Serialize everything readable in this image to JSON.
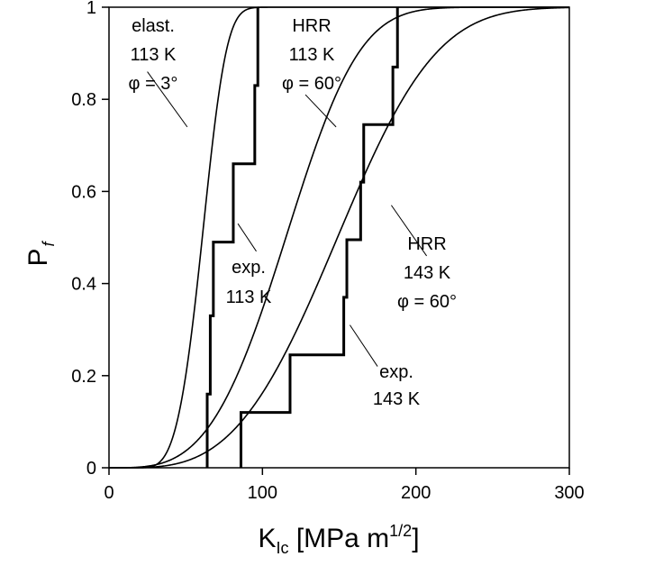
{
  "chart_data": {
    "type": "line",
    "title": "",
    "xlabel": {
      "main": "K",
      "sub": "Ic",
      "rest": " [MPa m",
      "sup": "1/2",
      "close": "]"
    },
    "ylabel": {
      "main": "P",
      "sub": "f"
    },
    "xlim": [
      0,
      300
    ],
    "ylim": [
      0,
      1
    ],
    "xticks": [
      0,
      100,
      200,
      300
    ],
    "xtick_labels": [
      "0",
      "100",
      "200",
      "300"
    ],
    "yticks": [
      0,
      0.2,
      0.4,
      0.6,
      0.8,
      1
    ],
    "ytick_labels": [
      "0",
      "0.2",
      "0.4",
      "0.6",
      "0.8",
      "1"
    ],
    "grid": false,
    "series": [
      {
        "name": "elast. 113 K φ = 3°",
        "kind": "smooth",
        "weibull": {
          "k0": 17,
          "scale": 48,
          "m": 4
        }
      },
      {
        "name": "HRR 113 K φ = 60°",
        "kind": "smooth",
        "weibull": {
          "k0": 0,
          "scale": 128,
          "m": 3.5
        }
      },
      {
        "name": "HRR 143 K φ = 60°",
        "kind": "smooth",
        "weibull": {
          "k0": 8,
          "scale": 158,
          "m": 3.2
        }
      },
      {
        "name": "exp. 113 K",
        "kind": "step",
        "points": [
          [
            64,
            0
          ],
          [
            64,
            0.16
          ],
          [
            66,
            0.16
          ],
          [
            66,
            0.33
          ],
          [
            68,
            0.33
          ],
          [
            68,
            0.49
          ],
          [
            81,
            0.49
          ],
          [
            81,
            0.66
          ],
          [
            95,
            0.66
          ],
          [
            95,
            0.83
          ],
          [
            97,
            0.83
          ],
          [
            97,
            1.0
          ]
        ]
      },
      {
        "name": "exp. 143 K",
        "kind": "step",
        "points": [
          [
            86,
            0
          ],
          [
            86,
            0.12
          ],
          [
            118,
            0.12
          ],
          [
            118,
            0.245
          ],
          [
            153,
            0.245
          ],
          [
            153,
            0.37
          ],
          [
            155,
            0.37
          ],
          [
            155,
            0.495
          ],
          [
            164,
            0.495
          ],
          [
            164,
            0.62
          ],
          [
            166,
            0.62
          ],
          [
            166,
            0.745
          ],
          [
            185,
            0.745
          ],
          [
            185,
            0.87
          ],
          [
            188,
            0.87
          ],
          [
            188,
            1.0
          ]
        ]
      }
    ],
    "annotations": [
      {
        "name": "elast-label",
        "lines": [
          "elast.",
          "113 K",
          "φ = 3°"
        ],
        "leader_from": [
          25,
          0.86
        ],
        "leader_to": [
          51,
          0.74
        ]
      },
      {
        "name": "hrr113-label",
        "lines": [
          "HRR",
          "113 K",
          "φ = 60°"
        ],
        "leader_from": [
          128,
          0.81
        ],
        "leader_to": [
          148,
          0.74
        ]
      },
      {
        "name": "exp113-label",
        "lines": [
          "exp.",
          "113 K"
        ],
        "leader_from": [
          84,
          0.53
        ],
        "leader_to": [
          96,
          0.47
        ]
      },
      {
        "name": "hrr143-label",
        "lines": [
          "HRR",
          "143 K",
          "φ = 60°"
        ],
        "leader_from": [
          184,
          0.57
        ],
        "leader_to": [
          207,
          0.46
        ]
      },
      {
        "name": "exp143-label",
        "lines": [
          "exp.",
          "143 K"
        ],
        "leader_from": [
          157,
          0.31
        ],
        "leader_to": [
          175,
          0.22
        ]
      }
    ]
  }
}
